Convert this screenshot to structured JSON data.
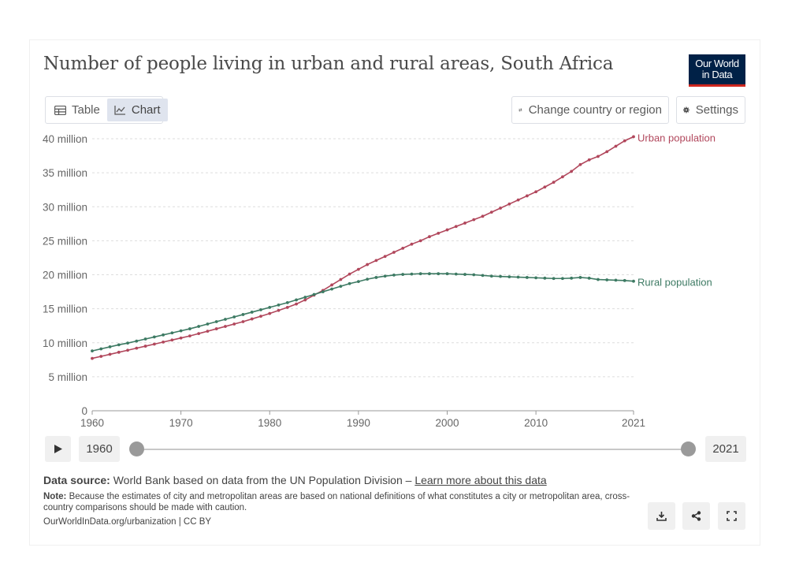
{
  "header": {
    "title": "Number of people living in urban and rural areas, South Africa",
    "logo_line1": "Our World",
    "logo_line2": "in Data"
  },
  "controls": {
    "tab_table": "Table",
    "tab_chart": "Chart",
    "change_country": "Change country or region",
    "settings": "Settings"
  },
  "timeline": {
    "start_year": "1960",
    "end_year": "2021"
  },
  "footer": {
    "source_label": "Data source:",
    "source_text": "World Bank based on data from the UN Population Division –",
    "source_link": "Learn more about this data",
    "note_label": "Note:",
    "note_text": "Because the estimates of city and metropolitan areas are based on national definitions of what constitutes a city or metropolitan area, cross-country comparisons should be made with caution.",
    "url": "OurWorldInData.org/urbanization | CC BY"
  },
  "colors": {
    "urban": "#b1475c",
    "rural": "#3d7a63",
    "grid": "#dddddd"
  },
  "chart_data": {
    "type": "line",
    "title": "Number of people living in urban and rural areas, South Africa",
    "xlabel": "",
    "ylabel": "",
    "xlim": [
      1960,
      2021
    ],
    "ylim": [
      0,
      40
    ],
    "y_unit_multiplier": 1000000,
    "y_ticks": [
      {
        "v": 0,
        "label": "0"
      },
      {
        "v": 5,
        "label": "5 million"
      },
      {
        "v": 10,
        "label": "10 million"
      },
      {
        "v": 15,
        "label": "15 million"
      },
      {
        "v": 20,
        "label": "20 million"
      },
      {
        "v": 25,
        "label": "25 million"
      },
      {
        "v": 30,
        "label": "30 million"
      },
      {
        "v": 35,
        "label": "35 million"
      },
      {
        "v": 40,
        "label": "40 million"
      }
    ],
    "x_ticks": [
      "1960",
      "1970",
      "1980",
      "1990",
      "2000",
      "2010",
      "2021"
    ],
    "grid": true,
    "legend": "right-end labels",
    "x": [
      1960,
      1961,
      1962,
      1963,
      1964,
      1965,
      1966,
      1967,
      1968,
      1969,
      1970,
      1971,
      1972,
      1973,
      1974,
      1975,
      1976,
      1977,
      1978,
      1979,
      1980,
      1981,
      1982,
      1983,
      1984,
      1985,
      1986,
      1987,
      1988,
      1989,
      1990,
      1991,
      1992,
      1993,
      1994,
      1995,
      1996,
      1997,
      1998,
      1999,
      2000,
      2001,
      2002,
      2003,
      2004,
      2005,
      2006,
      2007,
      2008,
      2009,
      2010,
      2011,
      2012,
      2013,
      2014,
      2015,
      2016,
      2017,
      2018,
      2019,
      2020,
      2021
    ],
    "series": [
      {
        "name": "Urban population",
        "values": [
          7.7,
          8.0,
          8.3,
          8.6,
          8.9,
          9.2,
          9.5,
          9.8,
          10.1,
          10.4,
          10.7,
          11.0,
          11.35,
          11.7,
          12.05,
          12.4,
          12.75,
          13.1,
          13.5,
          13.9,
          14.3,
          14.75,
          15.2,
          15.7,
          16.3,
          17.0,
          17.7,
          18.5,
          19.3,
          20.1,
          20.8,
          21.5,
          22.1,
          22.7,
          23.3,
          23.9,
          24.5,
          25.0,
          25.6,
          26.1,
          26.6,
          27.1,
          27.6,
          28.1,
          28.6,
          29.2,
          29.8,
          30.4,
          31.0,
          31.6,
          32.2,
          32.9,
          33.6,
          34.4,
          35.2,
          36.2,
          36.9,
          37.4,
          38.1,
          38.9,
          39.7,
          40.3
        ]
      },
      {
        "name": "Rural population",
        "values": [
          8.8,
          9.1,
          9.4,
          9.7,
          9.95,
          10.25,
          10.55,
          10.85,
          11.15,
          11.45,
          11.75,
          12.05,
          12.4,
          12.75,
          13.1,
          13.45,
          13.8,
          14.15,
          14.5,
          14.85,
          15.2,
          15.55,
          15.9,
          16.3,
          16.7,
          17.1,
          17.5,
          17.9,
          18.3,
          18.7,
          19.0,
          19.35,
          19.6,
          19.8,
          19.95,
          20.05,
          20.1,
          20.15,
          20.15,
          20.15,
          20.15,
          20.1,
          20.05,
          20.0,
          19.9,
          19.8,
          19.75,
          19.7,
          19.65,
          19.6,
          19.55,
          19.5,
          19.45,
          19.45,
          19.5,
          19.6,
          19.5,
          19.3,
          19.25,
          19.2,
          19.15,
          19.05
        ]
      }
    ]
  }
}
